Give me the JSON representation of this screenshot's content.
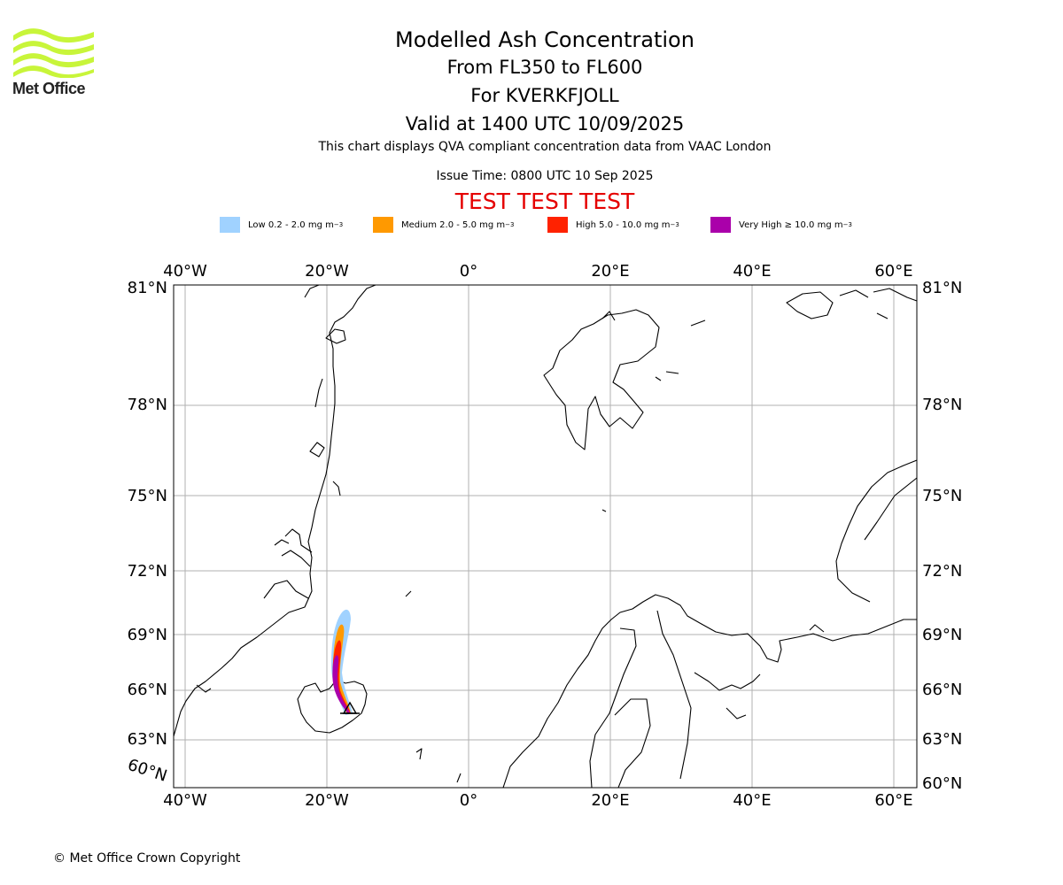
{
  "logo": {
    "text": "Met Office"
  },
  "title": {
    "main": "Modelled Ash Concentration",
    "levels": "From FL350 to FL600",
    "volcano": "For KVERKFJOLL",
    "valid": "Valid at 1400 UTC 10/09/2025"
  },
  "note": "This chart displays QVA compliant concentration data from VAAC London",
  "issue_time": "Issue Time: 0800 UTC 10 Sep 2025",
  "test_banner": "TEST TEST TEST",
  "legend": [
    {
      "label": "Low 0.2 - 2.0 mg m",
      "unit_exp": "−3",
      "color": "#a0d2ff"
    },
    {
      "label": "Medium 2.0 - 5.0 mg m",
      "unit_exp": "−3",
      "color": "#ff9900"
    },
    {
      "label": "High 5.0 - 10.0 mg m",
      "unit_exp": "−3",
      "color": "#ff2200"
    },
    {
      "label": "Very High  ≥  10.0 mg m",
      "unit_exp": "−3",
      "color": "#aa00aa"
    }
  ],
  "map": {
    "lon_labels_top": [
      "40°W",
      "20°W",
      "0°",
      "20°E",
      "40°E",
      "60°E"
    ],
    "lon_labels_bottom": [
      "40°W",
      "20°W",
      "0°",
      "20°E",
      "40°E",
      "60°E"
    ],
    "lat_labels_left": [
      "81°N",
      "78°N",
      "75°N",
      "72°N",
      "69°N",
      "66°N",
      "63°N",
      "60°N"
    ],
    "lat_labels_right": [
      "81°N",
      "78°N",
      "75°N",
      "72°N",
      "69°N",
      "66°N",
      "63°N",
      "60°N"
    ],
    "volcano_marker": "triangle-marker-icon"
  },
  "copyright": "© Met Office Crown Copyright"
}
